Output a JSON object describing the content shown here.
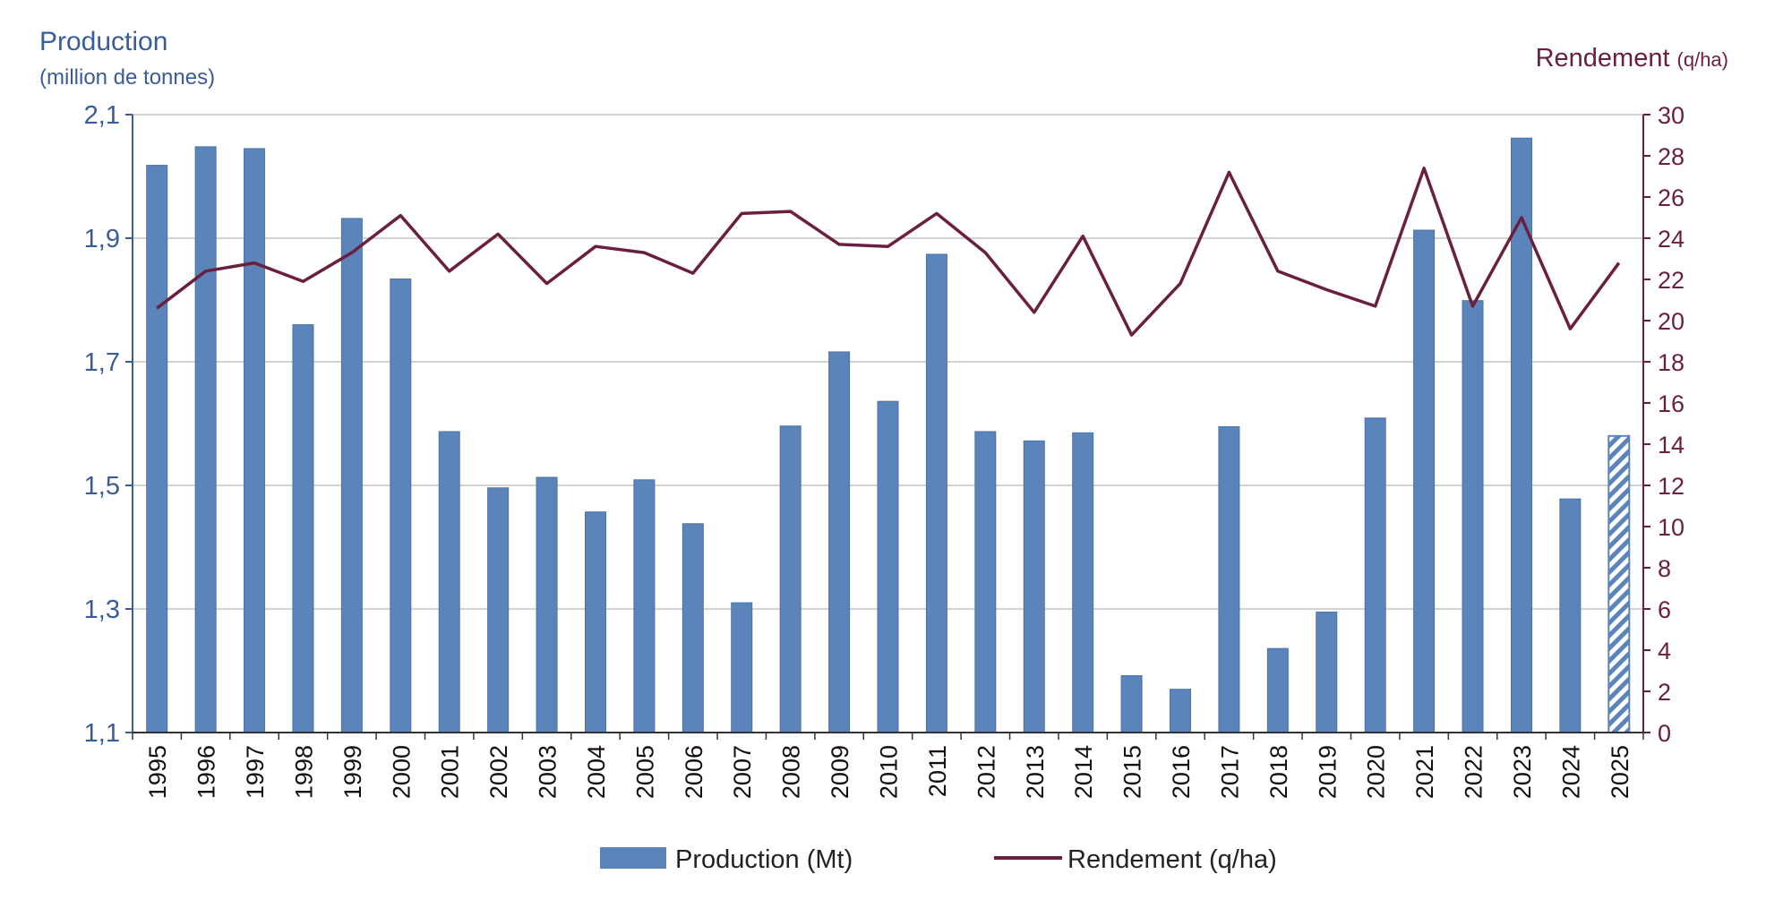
{
  "chart_data": {
    "type": "bar",
    "left_axis": {
      "title": "Production",
      "subtitle": "(million de tonnes)",
      "range": [
        1.1,
        2.1
      ],
      "ticks": [
        "1,1",
        "1,3",
        "1,5",
        "1,7",
        "1,9",
        "2,1"
      ]
    },
    "right_axis": {
      "title": "Rendement",
      "unit": "(q/ha)",
      "range": [
        0,
        30
      ],
      "ticks": [
        "0",
        "2",
        "4",
        "6",
        "8",
        "10",
        "12",
        "14",
        "16",
        "18",
        "20",
        "22",
        "24",
        "26",
        "28",
        "30"
      ]
    },
    "categories": [
      "1995",
      "1996",
      "1997",
      "1998",
      "1999",
      "2000",
      "2001",
      "2002",
      "2003",
      "2004",
      "2005",
      "2006",
      "2007",
      "2008",
      "2009",
      "2010",
      "2011",
      "2012",
      "2013",
      "2014",
      "2015",
      "2016",
      "2017",
      "2018",
      "2019",
      "2020",
      "2021",
      "2022",
      "2023",
      "2024",
      "2025"
    ],
    "series": [
      {
        "name": "Production (Mt)",
        "type": "bar",
        "axis": "left",
        "color": "#5b84bb",
        "hatched_last": true,
        "values": [
          2.018,
          2.048,
          2.045,
          1.76,
          1.932,
          1.834,
          1.587,
          1.496,
          1.513,
          1.457,
          1.509,
          1.438,
          1.31,
          1.596,
          1.716,
          1.636,
          1.874,
          1.587,
          1.572,
          1.585,
          1.192,
          1.17,
          1.595,
          1.236,
          1.295,
          1.609,
          1.913,
          1.799,
          2.062,
          1.478,
          1.58
        ]
      },
      {
        "name": "Rendement (q/ha)",
        "type": "line",
        "axis": "right",
        "color": "#6b1f3f",
        "values": [
          20.6,
          22.4,
          22.8,
          21.9,
          23.3,
          25.1,
          22.4,
          24.2,
          21.8,
          23.6,
          23.3,
          22.3,
          25.2,
          25.3,
          23.7,
          23.6,
          25.2,
          23.3,
          20.4,
          24.1,
          19.3,
          21.8,
          27.2,
          22.4,
          21.5,
          20.7,
          27.4,
          20.7,
          25.0,
          19.6,
          22.8
        ]
      }
    ],
    "grid": true,
    "legend": {
      "position": "bottom",
      "entries": [
        "Production (Mt)",
        "Rendement (q/ha)"
      ]
    }
  }
}
